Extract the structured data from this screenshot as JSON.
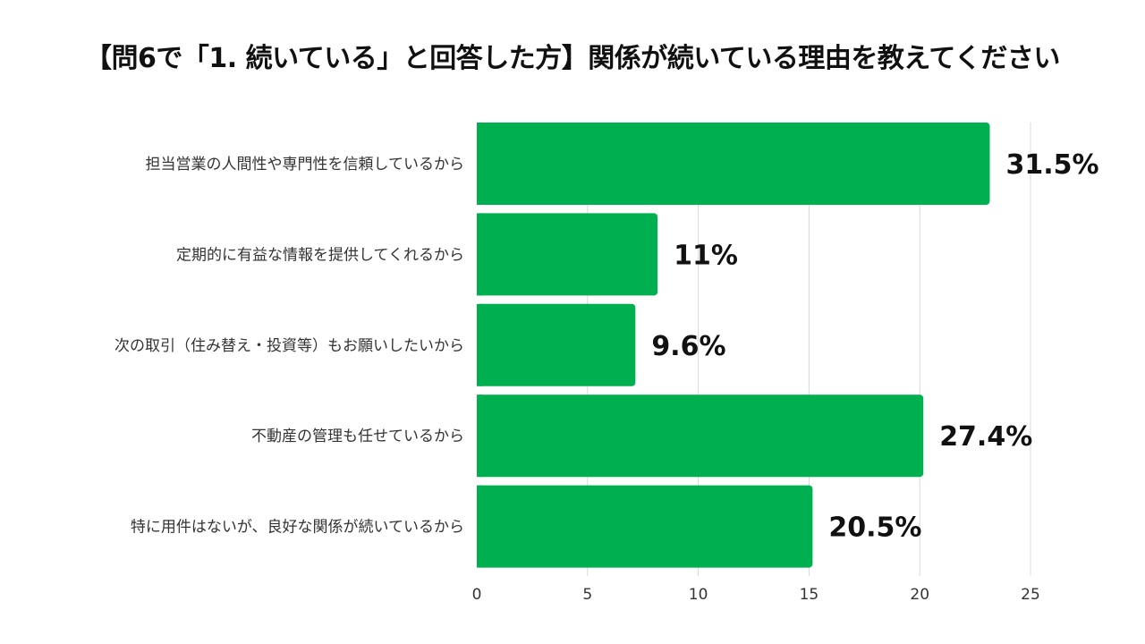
{
  "title": "【問6で「1. 続いている」と回答した方】関係が続いている理由を教えてください",
  "chart_data": {
    "type": "bar",
    "orientation": "horizontal",
    "title": "【問6で「1. 続いている」と回答した方】関係が続いている理由を教えてください",
    "categories": [
      "担当営業の人間性や専門性を信頼しているから",
      "定期的に有益な情報を提供してくれるから",
      "次の取引（住み替え・投資等）もお願いしたいから",
      "不動産の管理も任せているから",
      "特に用件はないが、良好な関係が続いているから"
    ],
    "values": [
      23,
      8,
      7,
      20,
      15
    ],
    "data_labels": [
      "31.5%",
      "11%",
      "9.6%",
      "27.4%",
      "20.5%"
    ],
    "xlim": [
      0,
      25
    ],
    "xticks": [
      0,
      5,
      10,
      15,
      20,
      25
    ],
    "bar_color": "#00b050",
    "grid": true,
    "legend": "none"
  }
}
